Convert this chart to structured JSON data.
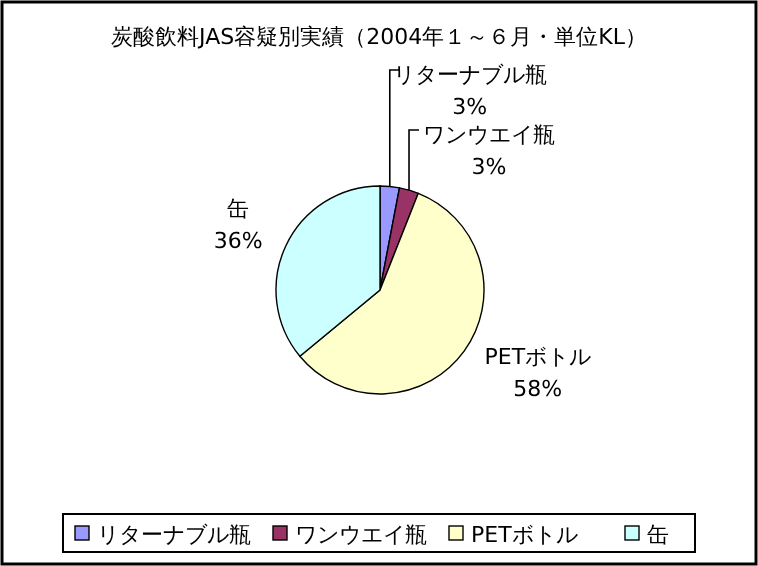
{
  "chart_data": {
    "type": "pie",
    "title": "炭酸飲料JAS容疑別実績（2004年１～６月・単位KL）",
    "categories": [
      "リターナブル瓶",
      "ワンウエイ瓶",
      "PETボトル",
      "缶"
    ],
    "values": [
      3,
      3,
      58,
      36
    ],
    "colors": [
      "#9999ff",
      "#993366",
      "#ffffcc",
      "#ccffff"
    ],
    "value_labels": [
      "3%",
      "3%",
      "58%",
      "36%"
    ],
    "legend": "bottom"
  }
}
